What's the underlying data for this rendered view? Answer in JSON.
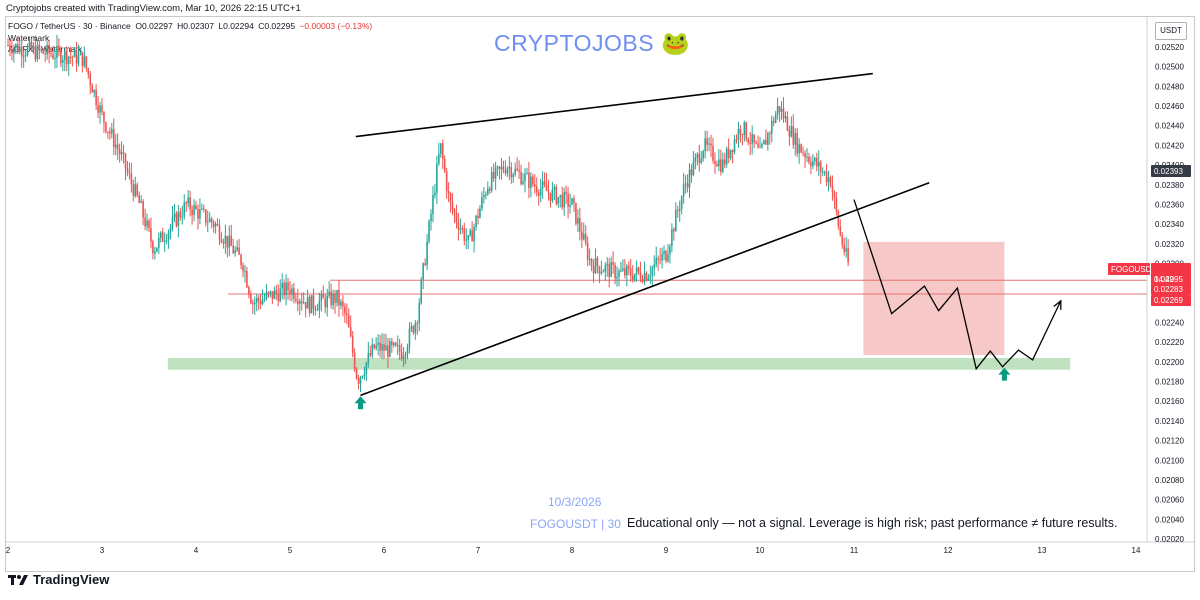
{
  "header": {
    "caption": "Cryptojobs created with TradingView.com, Mar 10, 2026 22:15 UTC+1",
    "symbol_line": "FOGO / TetherUS · 30 · Binance",
    "ohlc": {
      "o": "O0.02297",
      "h": "H0.02307",
      "l": "L0.02294",
      "c": "C0.02295",
      "chg": "−0.00003 (−0.13%)"
    },
    "indicator_1": "Watermark",
    "indicator_2": "AG FX · Watermark"
  },
  "watermarks": {
    "title": "CRYPTOJOBS",
    "title_emoji": "🐸",
    "date": "10/3/2026",
    "symbol": "FOGOUSDT | 30",
    "disclaimer": "Educational only — not a signal. Leverage is high risk; past performance ≠ future results."
  },
  "price_axis": {
    "currency": "USDT",
    "ticks": [
      "0.02520",
      "0.02500",
      "0.02480",
      "0.02460",
      "0.02440",
      "0.02420",
      "0.02400",
      "0.02380",
      "0.02360",
      "0.02340",
      "0.02320",
      "0.02300",
      "0.02280",
      "0.02260",
      "0.02240",
      "0.02220",
      "0.02200",
      "0.02180",
      "0.02160",
      "0.02140",
      "0.02120",
      "0.02100",
      "0.02080",
      "0.02060",
      "0.02040",
      "0.02020"
    ],
    "labels": {
      "last_tag": "0.02393",
      "symbol_tag": "FOGOUSDT",
      "current_price": "0.02295",
      "countdown": "14:49",
      "line_1": "0.02283",
      "line_2": "0.02269"
    },
    "colors": {
      "bull": "#26a69a",
      "bear": "#ef5350",
      "tag_dark": "#363a45",
      "tag_red": "#f23645"
    }
  },
  "time_axis": {
    "ticks": [
      "2",
      "3",
      "4",
      "5",
      "6",
      "7",
      "8",
      "9",
      "10",
      "11",
      "12",
      "13",
      "14"
    ]
  },
  "chart_data": {
    "type": "candlestick",
    "instrument": "FOGO / TetherUS · 30 · Binance",
    "ylim": [
      0.0201,
      0.0253
    ],
    "x_unit": "day of March 2026",
    "xlim": [
      2,
      14
    ],
    "price_path": [
      [
        2.0,
        0.02522
      ],
      [
        2.3,
        0.02515
      ],
      [
        2.6,
        0.02512
      ],
      [
        2.8,
        0.02508
      ],
      [
        3.0,
        0.0245
      ],
      [
        3.2,
        0.0241
      ],
      [
        3.4,
        0.0236
      ],
      [
        3.55,
        0.02315
      ],
      [
        3.75,
        0.0234
      ],
      [
        3.9,
        0.0236
      ],
      [
        4.2,
        0.0234
      ],
      [
        4.5,
        0.023
      ],
      [
        4.6,
        0.0226
      ],
      [
        5.0,
        0.02275
      ],
      [
        5.2,
        0.02258
      ],
      [
        5.5,
        0.02265
      ],
      [
        5.6,
        0.02245
      ],
      [
        5.72,
        0.02182
      ],
      [
        5.9,
        0.02215
      ],
      [
        6.2,
        0.0221
      ],
      [
        6.35,
        0.02245
      ],
      [
        6.5,
        0.0235
      ],
      [
        6.6,
        0.0242
      ],
      [
        6.7,
        0.0236
      ],
      [
        6.9,
        0.0232
      ],
      [
        7.1,
        0.0238
      ],
      [
        7.3,
        0.024
      ],
      [
        7.6,
        0.0238
      ],
      [
        8.0,
        0.0236
      ],
      [
        8.2,
        0.023
      ],
      [
        8.5,
        0.0229
      ],
      [
        8.8,
        0.0229
      ],
      [
        9.0,
        0.0231
      ],
      [
        9.2,
        0.0238
      ],
      [
        9.4,
        0.0242
      ],
      [
        9.6,
        0.024
      ],
      [
        9.8,
        0.0244
      ],
      [
        10.0,
        0.0241
      ],
      [
        10.2,
        0.0246
      ],
      [
        10.4,
        0.0242
      ],
      [
        10.6,
        0.024
      ],
      [
        10.75,
        0.02385
      ],
      [
        10.85,
        0.0233
      ],
      [
        10.95,
        0.02295
      ]
    ],
    "annotations": {
      "upper_wedge_line": [
        [
          5.7,
          0.02429
        ],
        [
          11.2,
          0.02493
        ]
      ],
      "lower_wedge_line": [
        [
          5.75,
          0.02166
        ],
        [
          11.8,
          0.02382
        ]
      ],
      "support_zone": {
        "x": [
          3.7,
          13.3
        ],
        "y": [
          0.02192,
          0.02204
        ]
      },
      "target_zone": {
        "x": [
          11.1,
          12.6
        ],
        "y": [
          0.02207,
          0.02322
        ]
      },
      "horizontal_lines": [
        0.02283,
        0.02269
      ],
      "projected_path": [
        [
          11.0,
          0.02365
        ],
        [
          11.4,
          0.02249
        ],
        [
          11.75,
          0.02277
        ],
        [
          11.9,
          0.02252
        ],
        [
          12.1,
          0.02275
        ],
        [
          12.3,
          0.02193
        ],
        [
          12.45,
          0.02211
        ],
        [
          12.58,
          0.02195
        ],
        [
          12.75,
          0.02212
        ],
        [
          12.9,
          0.02202
        ],
        [
          13.2,
          0.02262
        ]
      ],
      "up_arrows": [
        [
          5.75,
          0.02158
        ],
        [
          12.6,
          0.02187
        ]
      ]
    }
  }
}
